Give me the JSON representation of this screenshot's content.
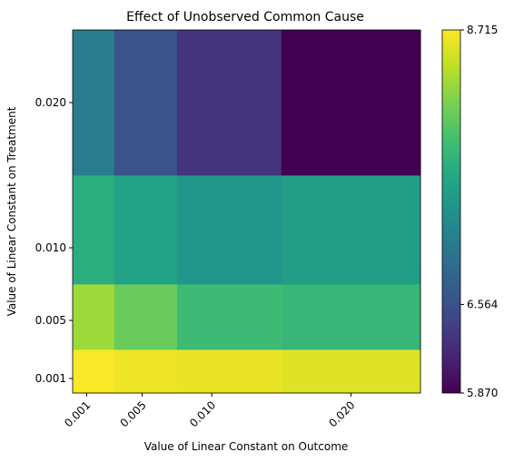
{
  "chart_data": {
    "type": "heatmap",
    "title": "Effect of Unobserved Common Cause",
    "xlabel": "Value of Linear Constant on Outcome",
    "ylabel": "Value of Linear Constant on Treatment",
    "x_ticks": [
      "0.001",
      "0.005",
      "0.010",
      "0.020"
    ],
    "y_ticks": [
      "0.001",
      "0.005",
      "0.010",
      "0.020"
    ],
    "x_edges": [
      0.0,
      0.003,
      0.0075,
      0.015,
      0.025
    ],
    "y_edges": [
      0.0,
      0.003,
      0.0075,
      0.015,
      0.025
    ],
    "xlim": [
      0.0,
      0.025
    ],
    "ylim": [
      0.0,
      0.025
    ],
    "rows_from_bottom": [
      [
        8.7,
        8.65,
        8.62,
        8.58
      ],
      [
        8.3,
        8.05,
        7.8,
        7.75
      ],
      [
        7.65,
        7.5,
        7.35,
        7.45
      ],
      [
        7.05,
        6.6,
        6.3,
        5.87
      ]
    ],
    "colorbar": {
      "min": 5.87,
      "max": 8.715,
      "ticks": [
        "8.715",
        "6.564",
        "5.870"
      ],
      "tick_values": [
        8.715,
        6.564,
        5.87
      ],
      "colormap": "viridis"
    }
  }
}
